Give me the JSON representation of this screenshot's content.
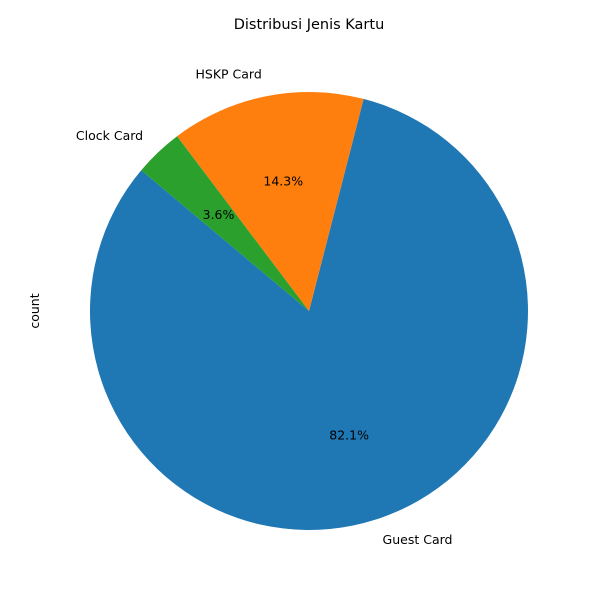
{
  "chart_data": {
    "type": "pie",
    "title": "Distribusi Jenis Kartu",
    "ylabel": "count",
    "start_angle_deg": 140,
    "direction": "counterclockwise",
    "legend": "none",
    "slices": [
      {
        "label": "Guest Card",
        "percent": 82.1,
        "pct_label": "82.1%",
        "color": "#1f77b4"
      },
      {
        "label": "HSKP Card",
        "percent": 14.3,
        "pct_label": "14.3%",
        "color": "#ff7f0e"
      },
      {
        "label": "Clock Card",
        "percent": 3.6,
        "pct_label": "3.6%",
        "color": "#2ca02c"
      }
    ]
  }
}
